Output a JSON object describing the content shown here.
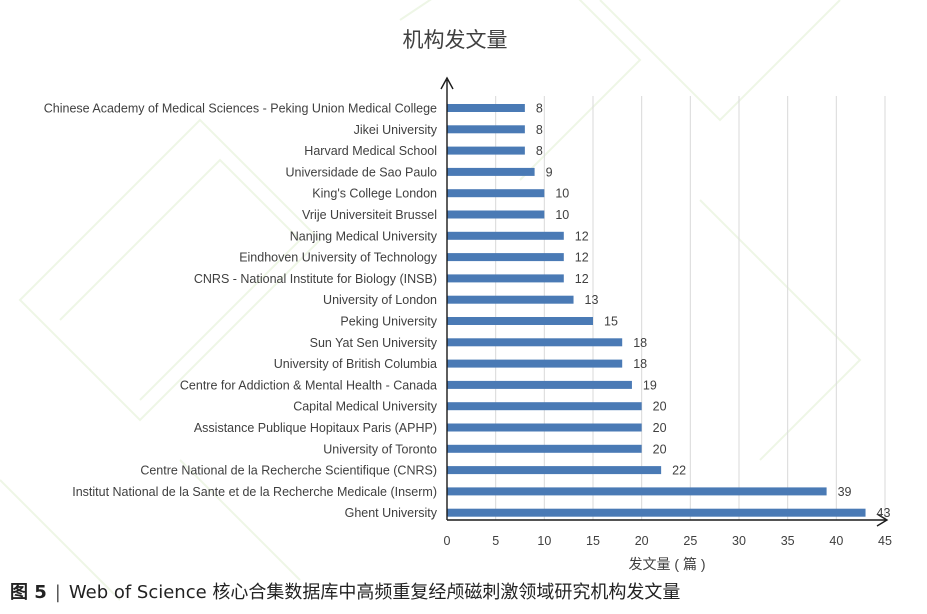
{
  "chart_data": {
    "type": "bar",
    "orientation": "horizontal",
    "title": "机构发文量",
    "xlabel": "发文量 ( 篇 )",
    "ylabel": "",
    "xlim": [
      0,
      45
    ],
    "x_ticks": [
      0,
      5,
      10,
      15,
      20,
      25,
      30,
      35,
      40,
      45
    ],
    "grid": "vertical",
    "legend": "none",
    "bar_color": "#4a7ab5",
    "data_labels": true,
    "categories": [
      "Chinese Academy of Medical Sciences - Peking Union Medical College",
      "Jikei University",
      "Harvard Medical School",
      "Universidade de Sao Paulo",
      "King's College London",
      "Vrije Universiteit Brussel",
      "Nanjing Medical University",
      "Eindhoven University of Technology",
      "CNRS - National Institute for Biology (INSB)",
      "University of London",
      "Peking University",
      "Sun Yat Sen University",
      "University of British Columbia",
      "Centre for Addiction & Mental Health - Canada",
      "Capital Medical University",
      "Assistance Publique Hopitaux Paris (APHP)",
      "University of Toronto",
      "Centre National de la Recherche Scientifique (CNRS)",
      "Institut National de la Sante et de la Recherche Medicale (Inserm)",
      "Ghent University"
    ],
    "values": [
      8,
      8,
      8,
      9,
      10,
      10,
      12,
      12,
      12,
      13,
      15,
      18,
      18,
      19,
      20,
      20,
      20,
      22,
      39,
      43
    ]
  },
  "caption": {
    "figure_label": "图 5",
    "separator": "|",
    "text": "Web of Science 核心合集数据库中高频重复经颅磁刺激领域研究机构发文量"
  }
}
